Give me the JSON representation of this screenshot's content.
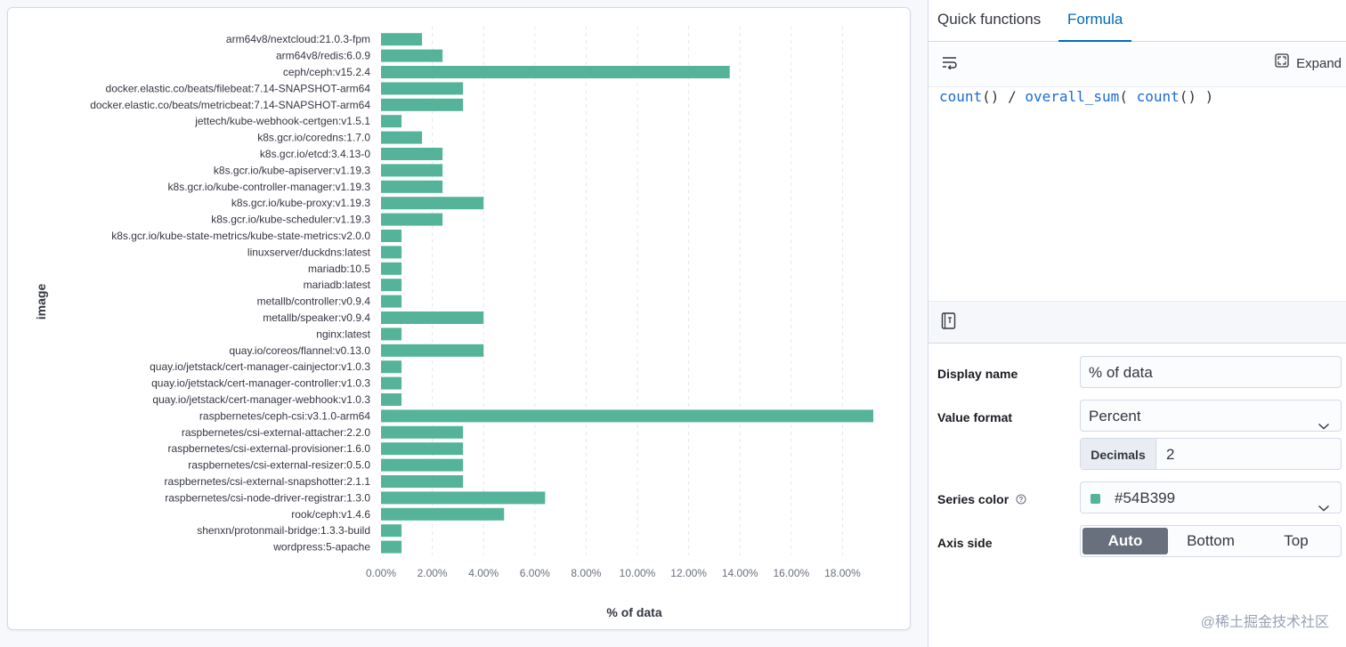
{
  "chart_data": {
    "type": "bar",
    "orientation": "horizontal",
    "ylabel": "image",
    "xlabel": "% of data",
    "xlim": [
      0,
      19.2
    ],
    "x_ticks": [
      "0.00%",
      "2.00%",
      "4.00%",
      "6.00%",
      "8.00%",
      "10.00%",
      "12.00%",
      "14.00%",
      "16.00%",
      "18.00%"
    ],
    "bar_color": "#54B399",
    "categories": [
      "arm64v8/nextcloud:21.0.3-fpm",
      "arm64v8/redis:6.0.9",
      "ceph/ceph:v15.2.4",
      "docker.elastic.co/beats/filebeat:7.14-SNAPSHOT-arm64",
      "docker.elastic.co/beats/metricbeat:7.14-SNAPSHOT-arm64",
      "jettech/kube-webhook-certgen:v1.5.1",
      "k8s.gcr.io/coredns:1.7.0",
      "k8s.gcr.io/etcd:3.4.13-0",
      "k8s.gcr.io/kube-apiserver:v1.19.3",
      "k8s.gcr.io/kube-controller-manager:v1.19.3",
      "k8s.gcr.io/kube-proxy:v1.19.3",
      "k8s.gcr.io/kube-scheduler:v1.19.3",
      "k8s.gcr.io/kube-state-metrics/kube-state-metrics:v2.0.0",
      "linuxserver/duckdns:latest",
      "mariadb:10.5",
      "mariadb:latest",
      "metallb/controller:v0.9.4",
      "metallb/speaker:v0.9.4",
      "nginx:latest",
      "quay.io/coreos/flannel:v0.13.0",
      "quay.io/jetstack/cert-manager-cainjector:v1.0.3",
      "quay.io/jetstack/cert-manager-controller:v1.0.3",
      "quay.io/jetstack/cert-manager-webhook:v1.0.3",
      "raspbernetes/ceph-csi:v3.1.0-arm64",
      "raspbernetes/csi-external-attacher:2.2.0",
      "raspbernetes/csi-external-provisioner:1.6.0",
      "raspbernetes/csi-external-resizer:0.5.0",
      "raspbernetes/csi-external-snapshotter:2.1.1",
      "raspbernetes/csi-node-driver-registrar:1.3.0",
      "rook/ceph:v1.4.6",
      "shenxn/protonmail-bridge:1.3.3-build",
      "wordpress:5-apache"
    ],
    "values": [
      1.6,
      2.4,
      13.6,
      3.2,
      3.2,
      0.8,
      1.6,
      2.4,
      2.4,
      2.4,
      4.0,
      2.4,
      0.8,
      0.8,
      0.8,
      0.8,
      0.8,
      4.0,
      0.8,
      4.0,
      0.8,
      0.8,
      0.8,
      19.2,
      3.2,
      3.2,
      3.2,
      3.2,
      6.4,
      4.8,
      0.8,
      0.8
    ]
  },
  "tabs": {
    "quick": "Quick functions",
    "formula": "Formula"
  },
  "editor": {
    "expand_label": "Expand",
    "formula_tokens": [
      {
        "t": "count",
        "k": "fn"
      },
      {
        "t": "() / ",
        "k": "op"
      },
      {
        "t": "overall_sum",
        "k": "fn"
      },
      {
        "t": "( ",
        "k": "op"
      },
      {
        "t": "count",
        "k": "fn"
      },
      {
        "t": "() )",
        "k": "op"
      }
    ]
  },
  "form": {
    "display_name_label": "Display name",
    "display_name_value": "% of data",
    "value_format_label": "Value format",
    "value_format_value": "Percent",
    "decimals_label": "Decimals",
    "decimals_value": "2",
    "series_color_label": "Series color",
    "series_color_value": "#54B399",
    "axis_side_label": "Axis side",
    "axis_side_options": [
      "Auto",
      "Bottom",
      "Top"
    ],
    "axis_side_selected": "Auto"
  },
  "watermark": "@稀土掘金技术社区"
}
